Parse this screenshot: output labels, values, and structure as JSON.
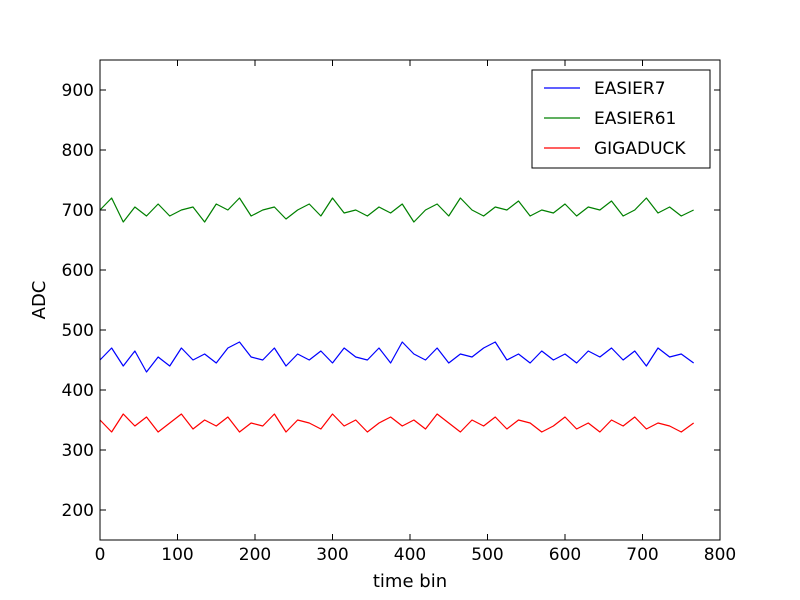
{
  "chart_data": {
    "type": "line",
    "title": "",
    "xlabel": "time bin",
    "ylabel": "ADC",
    "xlim": [
      0,
      800
    ],
    "ylim": [
      150,
      950
    ],
    "x_ticks": [
      0,
      100,
      200,
      300,
      400,
      500,
      600,
      700,
      800
    ],
    "y_ticks": [
      200,
      300,
      400,
      500,
      600,
      700,
      800,
      900
    ],
    "grid": false,
    "legend_position": "top-right",
    "series": [
      {
        "name": "EASIER7",
        "color": "#0000ff",
        "points": [
          [
            0,
            450
          ],
          [
            15,
            470
          ],
          [
            30,
            440
          ],
          [
            45,
            465
          ],
          [
            60,
            430
          ],
          [
            75,
            455
          ],
          [
            90,
            440
          ],
          [
            105,
            470
          ],
          [
            120,
            450
          ],
          [
            135,
            460
          ],
          [
            150,
            445
          ],
          [
            165,
            470
          ],
          [
            180,
            480
          ],
          [
            195,
            455
          ],
          [
            210,
            450
          ],
          [
            225,
            470
          ],
          [
            240,
            440
          ],
          [
            255,
            460
          ],
          [
            270,
            450
          ],
          [
            285,
            465
          ],
          [
            300,
            445
          ],
          [
            315,
            470
          ],
          [
            330,
            455
          ],
          [
            345,
            450
          ],
          [
            360,
            470
          ],
          [
            375,
            445
          ],
          [
            390,
            480
          ],
          [
            405,
            460
          ],
          [
            420,
            450
          ],
          [
            435,
            470
          ],
          [
            450,
            445
          ],
          [
            465,
            460
          ],
          [
            480,
            455
          ],
          [
            495,
            470
          ],
          [
            510,
            480
          ],
          [
            525,
            450
          ],
          [
            540,
            460
          ],
          [
            555,
            445
          ],
          [
            570,
            465
          ],
          [
            585,
            450
          ],
          [
            600,
            460
          ],
          [
            615,
            445
          ],
          [
            630,
            465
          ],
          [
            645,
            455
          ],
          [
            660,
            470
          ],
          [
            675,
            450
          ],
          [
            690,
            465
          ],
          [
            705,
            440
          ],
          [
            720,
            470
          ],
          [
            735,
            455
          ],
          [
            750,
            460
          ],
          [
            766,
            445
          ]
        ]
      },
      {
        "name": "EASIER61",
        "color": "#008000",
        "points": [
          [
            0,
            700
          ],
          [
            15,
            720
          ],
          [
            30,
            680
          ],
          [
            45,
            705
          ],
          [
            60,
            690
          ],
          [
            75,
            710
          ],
          [
            90,
            690
          ],
          [
            105,
            700
          ],
          [
            120,
            705
          ],
          [
            135,
            680
          ],
          [
            150,
            710
          ],
          [
            165,
            700
          ],
          [
            180,
            720
          ],
          [
            195,
            690
          ],
          [
            210,
            700
          ],
          [
            225,
            705
          ],
          [
            240,
            685
          ],
          [
            255,
            700
          ],
          [
            270,
            710
          ],
          [
            285,
            690
          ],
          [
            300,
            720
          ],
          [
            315,
            695
          ],
          [
            330,
            700
          ],
          [
            345,
            690
          ],
          [
            360,
            705
          ],
          [
            375,
            695
          ],
          [
            390,
            710
          ],
          [
            405,
            680
          ],
          [
            420,
            700
          ],
          [
            435,
            710
          ],
          [
            450,
            690
          ],
          [
            465,
            720
          ],
          [
            480,
            700
          ],
          [
            495,
            690
          ],
          [
            510,
            705
          ],
          [
            525,
            700
          ],
          [
            540,
            715
          ],
          [
            555,
            690
          ],
          [
            570,
            700
          ],
          [
            585,
            695
          ],
          [
            600,
            710
          ],
          [
            615,
            690
          ],
          [
            630,
            705
          ],
          [
            645,
            700
          ],
          [
            660,
            715
          ],
          [
            675,
            690
          ],
          [
            690,
            700
          ],
          [
            705,
            720
          ],
          [
            720,
            695
          ],
          [
            735,
            705
          ],
          [
            750,
            690
          ],
          [
            766,
            700
          ]
        ]
      },
      {
        "name": "GIGADUCK",
        "color": "#ff0000",
        "points": [
          [
            0,
            350
          ],
          [
            15,
            330
          ],
          [
            30,
            360
          ],
          [
            45,
            340
          ],
          [
            60,
            355
          ],
          [
            75,
            330
          ],
          [
            90,
            345
          ],
          [
            105,
            360
          ],
          [
            120,
            335
          ],
          [
            135,
            350
          ],
          [
            150,
            340
          ],
          [
            165,
            355
          ],
          [
            180,
            330
          ],
          [
            195,
            345
          ],
          [
            210,
            340
          ],
          [
            225,
            360
          ],
          [
            240,
            330
          ],
          [
            255,
            350
          ],
          [
            270,
            345
          ],
          [
            285,
            335
          ],
          [
            300,
            360
          ],
          [
            315,
            340
          ],
          [
            330,
            350
          ],
          [
            345,
            330
          ],
          [
            360,
            345
          ],
          [
            375,
            355
          ],
          [
            390,
            340
          ],
          [
            405,
            350
          ],
          [
            420,
            335
          ],
          [
            435,
            360
          ],
          [
            450,
            345
          ],
          [
            465,
            330
          ],
          [
            480,
            350
          ],
          [
            495,
            340
          ],
          [
            510,
            355
          ],
          [
            525,
            335
          ],
          [
            540,
            350
          ],
          [
            555,
            345
          ],
          [
            570,
            330
          ],
          [
            585,
            340
          ],
          [
            600,
            355
          ],
          [
            615,
            335
          ],
          [
            630,
            345
          ],
          [
            645,
            330
          ],
          [
            660,
            350
          ],
          [
            675,
            340
          ],
          [
            690,
            355
          ],
          [
            705,
            335
          ],
          [
            720,
            345
          ],
          [
            735,
            340
          ],
          [
            750,
            330
          ],
          [
            766,
            345
          ]
        ]
      }
    ]
  }
}
